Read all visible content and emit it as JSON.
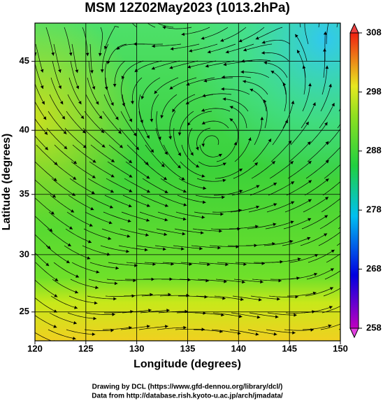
{
  "chart_data": {
    "type": "map",
    "title": "MSM 12Z02May2023 (1013.2hPa)",
    "x_label": "Longitude (degrees)",
    "y_label": "Latitude  (degrees)",
    "projection": "mercator",
    "xlim": [
      120,
      150
    ],
    "ylim": [
      22.4,
      47.6
    ],
    "xticks": [
      120,
      125,
      130,
      135,
      140,
      145,
      150
    ],
    "yticks": [
      25,
      30,
      35,
      40,
      45
    ],
    "grid": true,
    "colorbar": {
      "lim": [
        258,
        308
      ],
      "ticks": [
        258,
        268,
        278,
        288,
        298,
        308
      ]
    },
    "credits": [
      "Drawing by DCL (https://www.gfd-dennou.org/library/dcl/)",
      "Data from http://database.rish.kyoto-u.ac.jp/arch/jmadata/"
    ]
  }
}
